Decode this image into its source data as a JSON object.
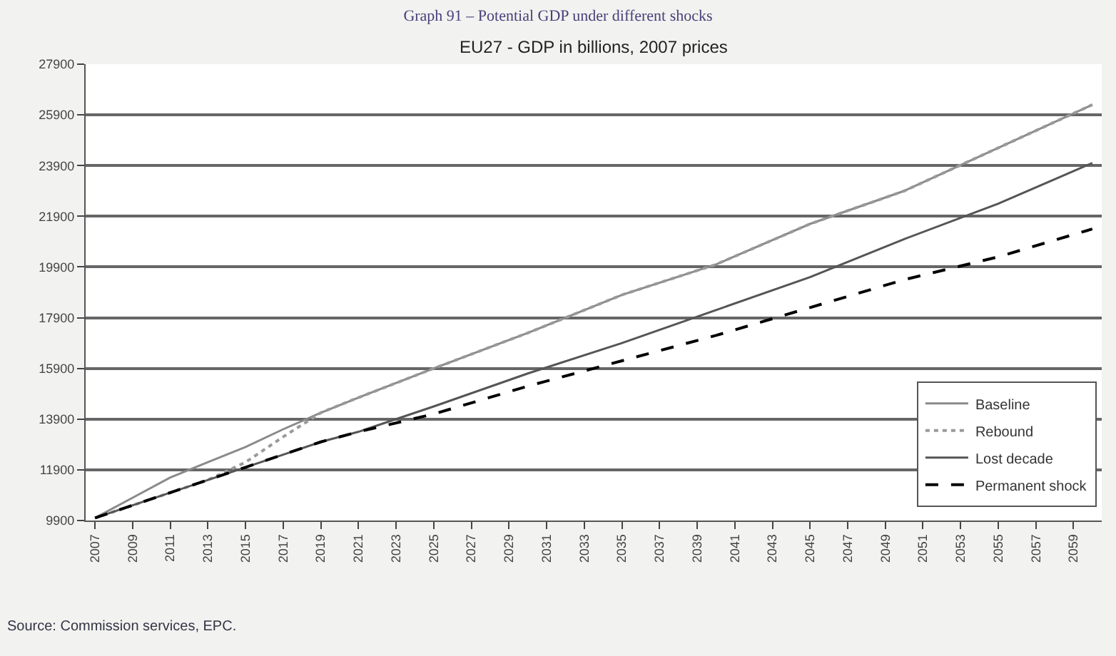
{
  "chart_data": {
    "type": "line",
    "title": "Graph 91 – Potential GDP under different shocks",
    "subtitle": "EU27 - GDP in billions, 2007 prices",
    "x": [
      2007,
      2009,
      2011,
      2013,
      2015,
      2017,
      2019,
      2021,
      2025,
      2030,
      2035,
      2040,
      2045,
      2050,
      2055,
      2060
    ],
    "series": [
      {
        "name": "Baseline",
        "color": "#8a8a8a",
        "line_style": "solid",
        "values": [
          10000,
          10800,
          11600,
          12200,
          12800,
          13500,
          14150,
          14750,
          15900,
          17300,
          18800,
          20000,
          21600,
          22900,
          24600,
          26300
        ]
      },
      {
        "name": "Rebound",
        "color": "#9a9a9a",
        "line_style": "dotted",
        "values": [
          10000,
          10500,
          11000,
          11500,
          12200,
          13200,
          14150,
          14750,
          15900,
          17300,
          18800,
          20000,
          21600,
          22900,
          24600,
          26300
        ]
      },
      {
        "name": "Lost decade",
        "color": "#555555",
        "line_style": "solid",
        "values": [
          10000,
          10500,
          11000,
          11500,
          12000,
          12500,
          13000,
          13400,
          14400,
          15700,
          16900,
          18200,
          19500,
          21000,
          22400,
          24000
        ]
      },
      {
        "name": "Permanent shock",
        "color": "#000000",
        "line_style": "dashed",
        "values": [
          10000,
          10500,
          11000,
          11500,
          12000,
          12500,
          13000,
          13400,
          14100,
          15200,
          16200,
          17200,
          18300,
          19400,
          20300,
          21400
        ]
      }
    ],
    "xlim": [
      2006.5,
      2060.5
    ],
    "xticks": [
      2007,
      2009,
      2011,
      2013,
      2015,
      2017,
      2019,
      2021,
      2023,
      2025,
      2027,
      2029,
      2031,
      2033,
      2035,
      2037,
      2039,
      2041,
      2043,
      2045,
      2047,
      2049,
      2051,
      2053,
      2055,
      2057,
      2059
    ],
    "ylim": [
      9900,
      27900
    ],
    "yticks": [
      9900,
      11900,
      13900,
      15900,
      17900,
      19900,
      21900,
      23900,
      25900,
      27900
    ],
    "grid": "y",
    "legend": "bottom right",
    "marker": "none",
    "annotations": [
      "Source: Commission services, EPC."
    ]
  }
}
